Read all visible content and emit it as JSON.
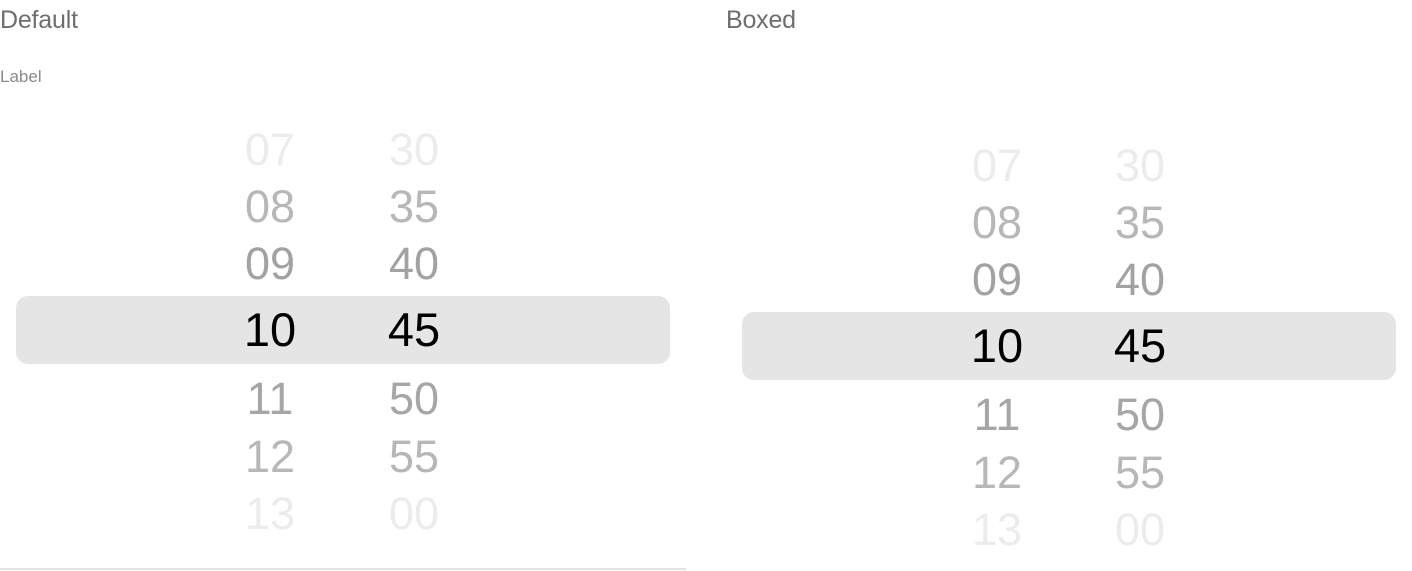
{
  "default": {
    "title": "Default",
    "label": "Label",
    "hours": [
      "07",
      "08",
      "09",
      "10",
      "11",
      "12",
      "13"
    ],
    "minutes": [
      "30",
      "35",
      "40",
      "45",
      "50",
      "55",
      "00"
    ],
    "selected_hour": "10",
    "selected_minute": "45"
  },
  "boxed": {
    "title": "Boxed",
    "hours": [
      "07",
      "08",
      "09",
      "10",
      "11",
      "12",
      "13"
    ],
    "minutes": [
      "30",
      "35",
      "40",
      "45",
      "50",
      "55",
      "00"
    ],
    "selected_hour": "10",
    "selected_minute": "45"
  }
}
